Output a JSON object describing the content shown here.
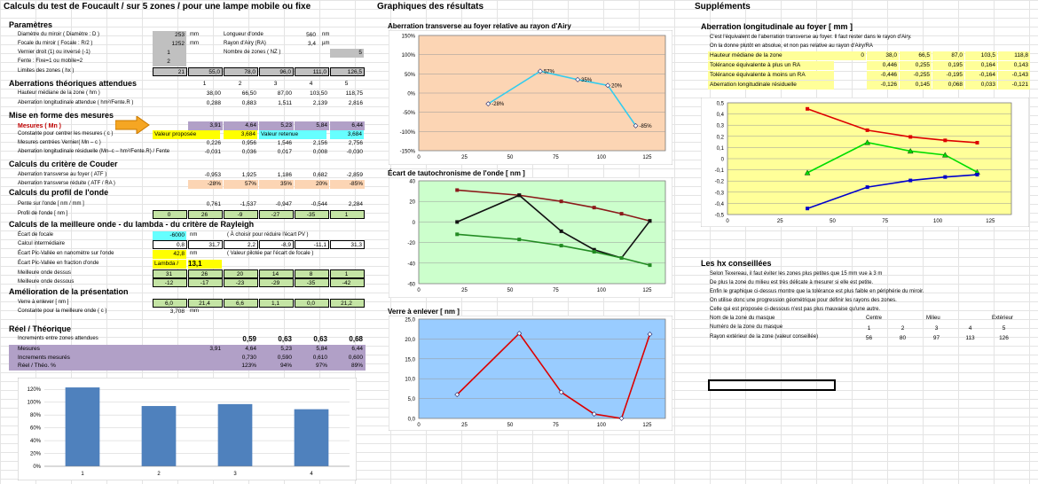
{
  "title": "Calculs du test de Foucault  /  sur 5 zones  /  pour une lampe mobile ou fixe",
  "graph_title": "Graphiques des résultats",
  "supp_title": "Suppléments",
  "params": {
    "heading": "Paramètres",
    "diam_label": "Diamètre du miroir ( Diamètre : D )",
    "diam_val": "253",
    "diam_unit": "mm",
    "focale_label": "Focale du miroir ( Focale : R/2 )",
    "focale_val": "1252",
    "focale_unit": "mm",
    "vernier_label": "Vernier droit (1) ou inversé (-1)",
    "vernier_val": "1",
    "fente_label": "Fente : Fixe=1 ou mobile=2",
    "fente_val": "2",
    "limites_label": "Limites des zones ( hx )",
    "limites": [
      "21",
      "55,0",
      "78,0",
      "96,0",
      "111,0",
      "126,5"
    ],
    "longueur_label": "Longueur d'onde",
    "longueur_val": "560",
    "longueur_unit": "nm",
    "airy_label": "Rayon d'Airy (RA)",
    "airy_val": "3,4",
    "airy_unit": "µm",
    "nz_label": "Nombre de zones ( NZ )",
    "nz_val": "5"
  },
  "aberr": {
    "heading": "Aberrations théoriques attendues",
    "zones": [
      "1",
      "2",
      "3",
      "4",
      "5"
    ],
    "hm_label": "Hauteur médiane de la zone ( hm )",
    "hm": [
      "38,00",
      "66,50",
      "87,00",
      "103,50",
      "118,75"
    ],
    "al_label": "Aberration longitudinale attendue ( hm²/Fente.R )",
    "al": [
      "0,288",
      "0,883",
      "1,511",
      "2,139",
      "2,816"
    ]
  },
  "mesures": {
    "heading": "Mise en forme des mesures",
    "mn_label": "Mesures  ( Mn )",
    "mn": [
      "3,91",
      "4,64",
      "5,23",
      "5,84",
      "6,44"
    ],
    "const_label": "Constante pour centrer les mesures ( c )",
    "valeur_proposee": "Valeur proposée",
    "vp": "3,684",
    "valeur_retenue": "Valeur retenue",
    "vr": "3,684",
    "mc_label": "Mesures centrées Vernier( Mn – c )",
    "mc": [
      "0,226",
      "0,956",
      "1,546",
      "2,156",
      "2,756"
    ],
    "ar_label": "Aberration longitudinale résiduelle (Mn–c – hm²/Fente.R) / Fente",
    "ar": [
      "-0,031",
      "0,036",
      "0,017",
      "0,008",
      "-0,030"
    ]
  },
  "couder": {
    "heading": "Calculs du critère de Couder",
    "atf_label": "Aberration transverse au foyer ( ATF )",
    "atf": [
      "-0,953",
      "1,925",
      "1,186",
      "0,682",
      "-2,859"
    ],
    "atr_label": "Aberration transverse réduite ( ATF / RA )",
    "atr": [
      "-28%",
      "57%",
      "35%",
      "20%",
      "-85%"
    ]
  },
  "profil": {
    "heading": "Calculs du profil de l'onde",
    "pente_label": "Pente sur l'onde [ nm / mm ]",
    "pente": [
      "0,761",
      "-1,537",
      "-0,947",
      "-0,544",
      "2,284"
    ],
    "prof_label": "Profil de l'onde [ nm ]",
    "prof": [
      "0",
      "26",
      "-9",
      "-27",
      "-35",
      "1"
    ]
  },
  "meilleure": {
    "heading": "Calculs de la meilleure onde - du lambda - du critère de Rayleigh",
    "ecart_label": "Écart de focale",
    "ecart_val": "-6000",
    "ecart_unit": "nm",
    "ecart_note": "( À choisir pour réduire l'écart PV )",
    "calc_label": "Calcul intermédiaire",
    "calc": [
      "0,8",
      "31,7",
      "2,2",
      "-8,9",
      "-11,1",
      "31,3"
    ],
    "pv_label": "Écart Pic-Vallée en nanomètre sur l'onde",
    "pv_val": "42,8",
    "pv_unit": "nm",
    "pv_note": "( Valeur pilotée par l'écart de focale )",
    "pvf_label": "Écart Pic-Vallée en fraction d'onde",
    "lambda_label": "Lambda /",
    "lambda_val": "13,1",
    "dessus_label": "Meilleure onde dessus",
    "dessus": [
      "31",
      "26",
      "20",
      "14",
      "8",
      "1"
    ],
    "dessous_label": "Meilleure onde dessous",
    "dessous": [
      "-12",
      "-17",
      "-23",
      "-29",
      "-35",
      "-42"
    ]
  },
  "amelioration": {
    "heading": "Amélioration de la présentation",
    "verre_label": "Verre à enlever [ nm ]",
    "verre": [
      "6,0",
      "21,4",
      "6,6",
      "1,1",
      "0,0",
      "21,2"
    ],
    "constm_label": "Constante pour la meilleure onde ( c )",
    "constm_val": "3,708",
    "constm_unit": "mm"
  },
  "reel": {
    "heading": "Réel / Théorique",
    "incr_att_label": "Increments entre zones attendues",
    "incr_att": [
      "0,59",
      "0,63",
      "0,63",
      "0,68"
    ],
    "mes_label": "Mesures",
    "mes": [
      "3,91",
      "4,64",
      "5,23",
      "5,84",
      "6,44"
    ],
    "incr_mes_label": "Increments mesurés",
    "incr_mes": [
      "0,730",
      "0,590",
      "0,610",
      "0,600"
    ],
    "ratio_label": "Réel / Théo. %",
    "ratio": [
      "123%",
      "94%",
      "97%",
      "89%"
    ]
  },
  "bar_chart": {
    "chart_data": {
      "type": "bar",
      "categories": [
        "1",
        "2",
        "3",
        "4"
      ],
      "values": [
        123,
        94,
        97,
        89
      ],
      "yticks": [
        "120%",
        "100%",
        "80%",
        "60%",
        "40%",
        "20%",
        "0%"
      ],
      "ylim": [
        0,
        130
      ]
    }
  },
  "chart1": {
    "title": "Aberration transverse au foyer relative au rayon d'Airy",
    "chart_data": {
      "type": "line",
      "x": [
        38,
        66.5,
        87,
        103.5,
        118.75
      ],
      "values": [
        -28,
        57,
        35,
        20,
        -85
      ],
      "labels": [
        "-28%",
        "57%",
        "35%",
        "20%",
        "-85%"
      ],
      "xticks": [
        "0",
        "25",
        "50",
        "75",
        "100",
        "125"
      ],
      "yticks": [
        "150%",
        "100%",
        "50%",
        "0%",
        "-50%",
        "-100%",
        "-150%"
      ],
      "xlim": [
        0,
        135
      ],
      "ylim": [
        -150,
        150
      ],
      "bg": "#fcd5b4",
      "color": "#33ccee"
    }
  },
  "chart2": {
    "title": "Écart de tautochronisme de l'onde [ nm ]",
    "chart_data": {
      "type": "line",
      "x": [
        21,
        55,
        78,
        96,
        111,
        126.5
      ],
      "series": [
        {
          "values": [
            31,
            26,
            20,
            14,
            8,
            1
          ],
          "color": "#8b1a1a"
        },
        {
          "values": [
            0,
            26,
            -9,
            -27,
            -35,
            1
          ],
          "color": "#111111"
        },
        {
          "values": [
            -12,
            -17,
            -23,
            -29,
            -35,
            -42
          ],
          "color": "#228b22"
        }
      ],
      "xticks": [
        "0",
        "25",
        "50",
        "75",
        "100",
        "125"
      ],
      "yticks": [
        "40",
        "20",
        "0",
        "-20",
        "-40",
        "-60"
      ],
      "xlim": [
        0,
        135
      ],
      "ylim": [
        -60,
        40
      ],
      "bg": "#ccffcc"
    }
  },
  "chart3": {
    "title": "Verre à enlever [ nm ]",
    "chart_data": {
      "type": "line",
      "x": [
        21,
        55,
        78,
        96,
        111,
        126.5
      ],
      "values": [
        6.0,
        21.4,
        6.6,
        1.1,
        0.0,
        21.2
      ],
      "xticks": [
        "0",
        "25",
        "50",
        "75",
        "100",
        "125"
      ],
      "yticks": [
        "25,0",
        "20,0",
        "15,0",
        "10,0",
        "5,0",
        "0,0"
      ],
      "xlim": [
        0,
        135
      ],
      "ylim": [
        0,
        25
      ],
      "bg": "#99ccff",
      "color": "#dd0000"
    }
  },
  "supp": {
    "heading": "Aberration longitudinale au foyer [ mm ]",
    "line1": "C'est l'équivalent de l'aberration transverse au foyer. Il faut rester dans le rayon d'Airy.",
    "line2": "On la donne plutôt en absolue, et non pas relative au rayon d'Airy/RA",
    "hm_label": "Hauteur médiane de la zone",
    "hm": [
      "0",
      "38,0",
      "66,5",
      "87,0",
      "103,5",
      "118,8"
    ],
    "tp_label": "Tolérance équivalente à plus un RA",
    "tp": [
      "0,446",
      "0,255",
      "0,195",
      "0,164",
      "0,143"
    ],
    "tm_label": "Tolérance équivalente à moins un RA",
    "tm": [
      "-0,446",
      "-0,255",
      "-0,195",
      "-0,164",
      "-0,143"
    ],
    "alr_label": "Aberration longitudinale résiduelle",
    "alr": [
      "-0,126",
      "0,145",
      "0,068",
      "0,033",
      "-0,121"
    ]
  },
  "chart4": {
    "chart_data": {
      "type": "line",
      "x": [
        38,
        66.5,
        87,
        103.5,
        118.75
      ],
      "series": [
        {
          "values": [
            0.446,
            0.255,
            0.195,
            0.164,
            0.143
          ],
          "color": "#dd0000",
          "marker": "square"
        },
        {
          "values": [
            -0.126,
            0.145,
            0.068,
            0.033,
            -0.121
          ],
          "color": "#00dd00",
          "marker": "triangle"
        },
        {
          "values": [
            -0.446,
            -0.255,
            -0.195,
            -0.164,
            -0.143
          ],
          "color": "#0000cc",
          "marker": "square"
        }
      ],
      "xticks": [
        "0",
        "25",
        "50",
        "75",
        "100",
        "125"
      ],
      "yticks": [
        "0,5",
        "0,4",
        "0,3",
        "0,2",
        "0,1",
        "0",
        "-0,1",
        "-0,2",
        "-0,3",
        "-0,4",
        "-0,5"
      ],
      "xlim": [
        0,
        135
      ],
      "ylim": [
        -0.5,
        0.5
      ],
      "bg": "#ffff99"
    }
  },
  "hx": {
    "heading": "Les hx conseillées",
    "l1": "Selon Texereau, il faut éviter les zones plus petites que 15 mm vue à 3 m",
    "l2": "De plus la zone du milieu est très délicate à mesurer si elle est petite.",
    "l3": "Enfin le graphique ci-dessus montre que la tolérance est plus faible en périphérie du miroir.",
    "l4": "On utilise donc une progression géométrique pour définir les rayons des zones.",
    "l5": "Celle qui est proposée ci-dessous n'est pas plus mauvaise qu'une autre.",
    "nom_label": "Nom de la zone du masque",
    "centre": "Centre",
    "milieu": "Milieu",
    "exterieur": "Extérieur",
    "num_label": "Numéro de la zone du masque",
    "nums": [
      "1",
      "2",
      "3",
      "4",
      "5"
    ],
    "rayon_label": "Rayon extérieur de la zone (valeur conseillée)",
    "rayons": [
      "56",
      "80",
      "97",
      "113",
      "126"
    ]
  }
}
